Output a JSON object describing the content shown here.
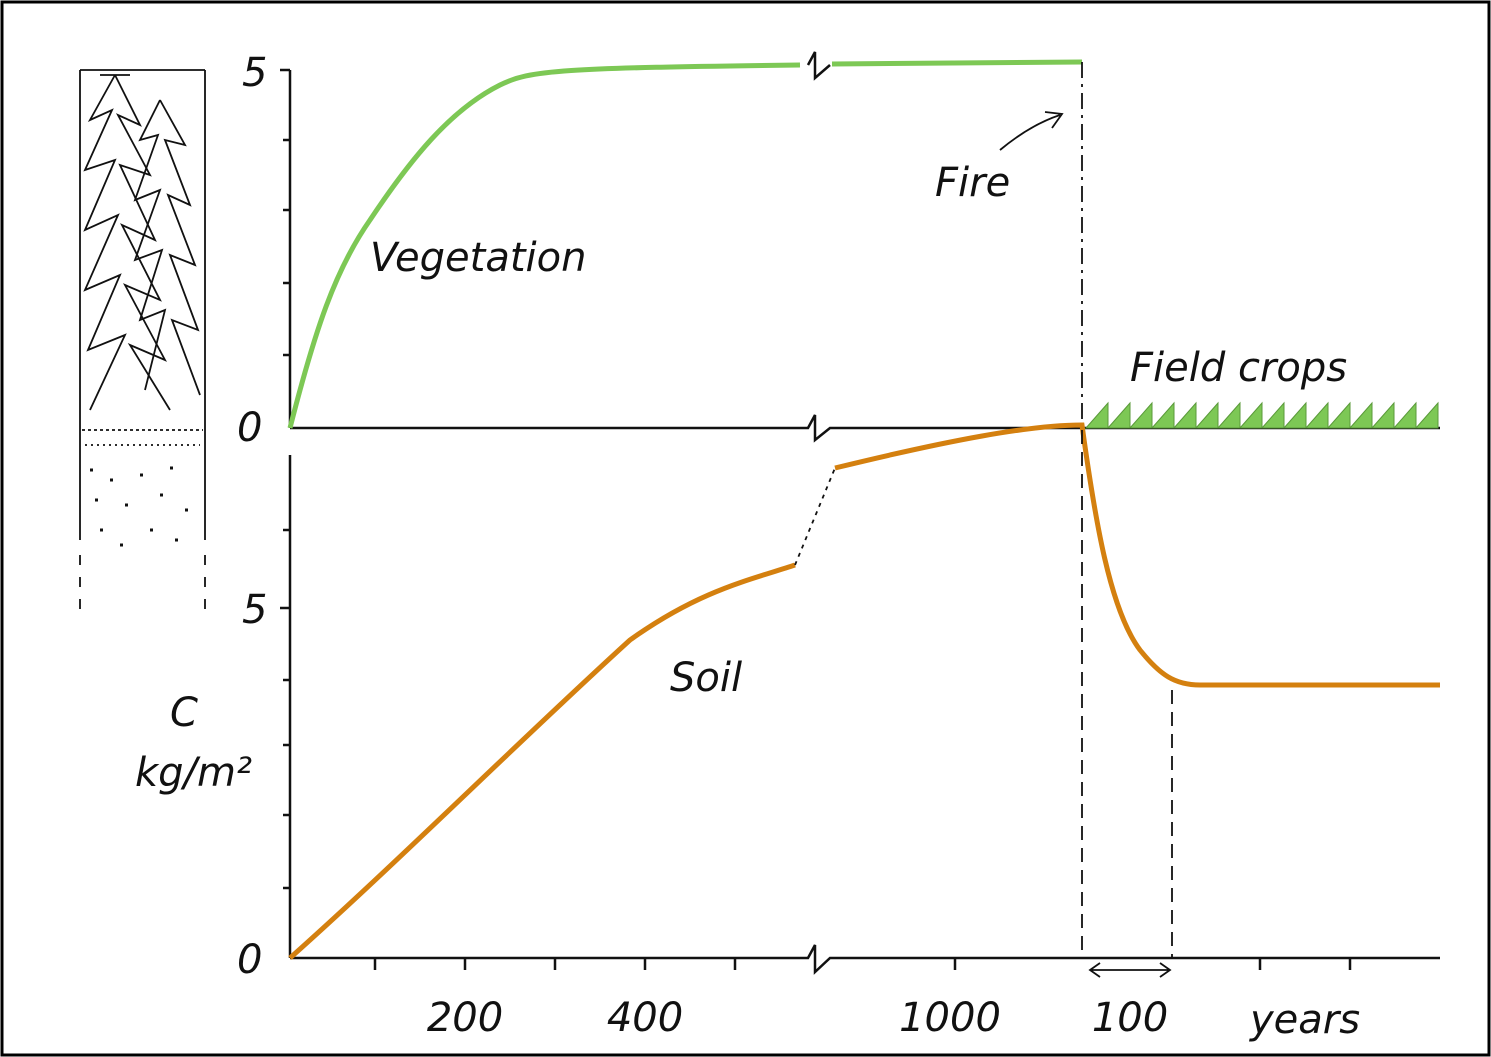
{
  "labels": {
    "vegetation": "Vegetation",
    "soil": "Soil",
    "fire": "Fire",
    "field_crops": "Field crops",
    "unit_symbol": "C",
    "unit": "kg/m²"
  },
  "top_y_axis": {
    "ticks": [
      "5",
      "0"
    ]
  },
  "bottom_y_axis": {
    "ticks": [
      "5",
      "0"
    ]
  },
  "x_axis": {
    "ticks": [
      "200",
      "400",
      "1000",
      "100"
    ],
    "unit": "years"
  }
}
